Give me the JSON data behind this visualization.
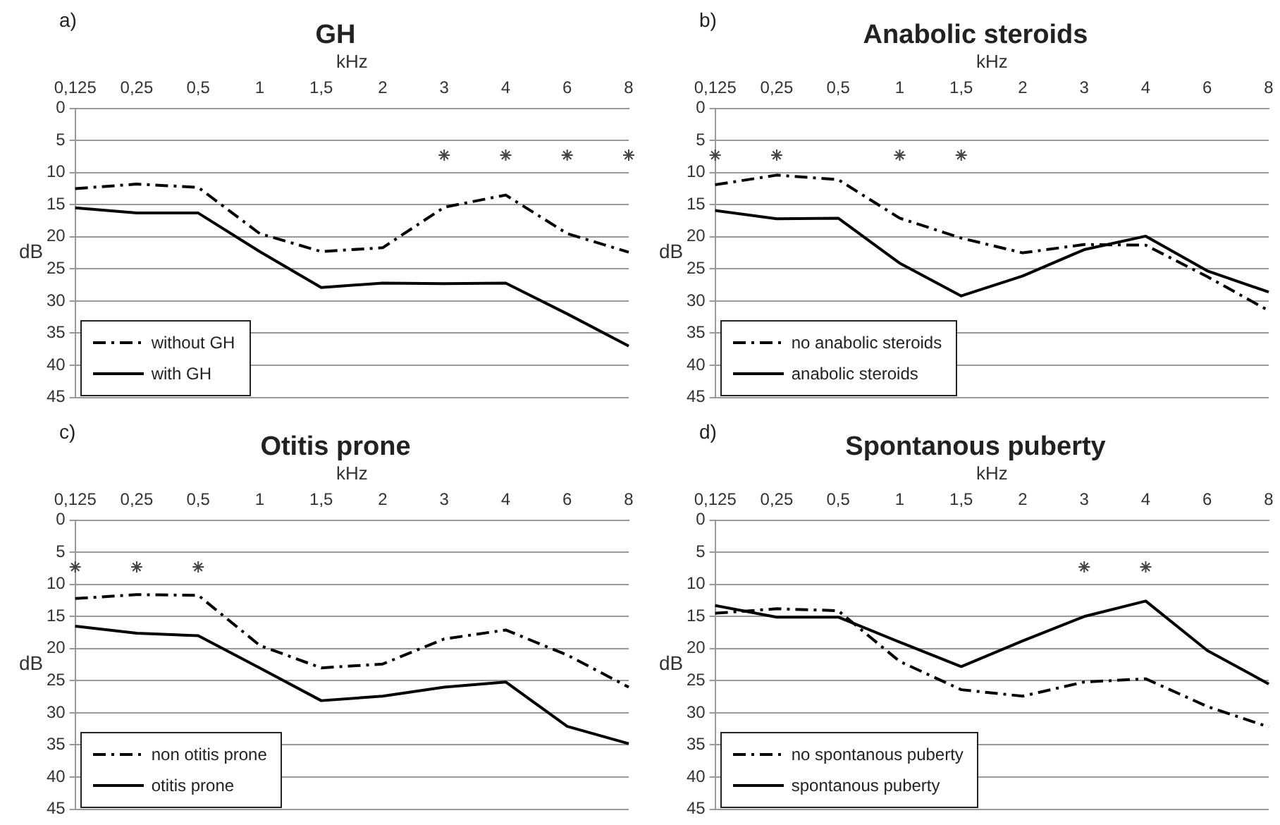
{
  "chart_data": [
    {
      "type": "line",
      "title": "GH",
      "xlabel": "kHz",
      "ylabel": "dB",
      "categories": [
        "0,125",
        "0,25",
        "0,5",
        "1",
        "1,5",
        "2",
        "3",
        "4",
        "6",
        "8"
      ],
      "ylim": [
        45,
        0
      ],
      "yticks": [
        0,
        5,
        10,
        15,
        20,
        25,
        30,
        35,
        40,
        45
      ],
      "grid": "y",
      "legend": "bottom left",
      "marker": "none",
      "tick_labels": "xy",
      "series": [
        {
          "name": "without GH",
          "color": "#000000",
          "line_style": "dashed",
          "values": [
            12.5,
            11.8,
            12.3,
            19.5,
            22.3,
            21.7,
            15.4,
            13.5,
            19.5,
            22.4
          ]
        },
        {
          "name": "with GH",
          "color": "#000000",
          "line_style": "solid",
          "values": [
            15.5,
            16.3,
            16.3,
            22.3,
            27.9,
            27.2,
            27.3,
            27.2,
            32,
            37
          ]
        },
        {
          "type": "scatter",
          "marker": "cross",
          "color": "#444444",
          "values": [
            null,
            null,
            null,
            null,
            null,
            null,
            7.3,
            7.3,
            7.3,
            7.3
          ]
        }
      ],
      "annotations": [
        "a)"
      ]
    },
    {
      "type": "line",
      "title": "Anabolic steroids",
      "xlabel": "kHz",
      "ylabel": "dB",
      "categories": [
        "0,125",
        "0,25",
        "0,5",
        "1",
        "1,5",
        "2",
        "3",
        "4",
        "6",
        "8"
      ],
      "ylim": [
        45,
        0
      ],
      "yticks": [
        0,
        5,
        10,
        15,
        20,
        25,
        30,
        35,
        40,
        45
      ],
      "grid": "y",
      "legend": "bottom left",
      "marker": "none",
      "series": [
        {
          "name": "no anabolic steroids",
          "color": "#000000",
          "line_style": "dashed",
          "values": [
            11.9,
            10.4,
            11.1,
            17.1,
            20.2,
            22.5,
            21.2,
            21.3,
            26.2,
            31.5
          ]
        },
        {
          "name": "anabolic steroids",
          "color": "#000000",
          "line_style": "solid",
          "values": [
            15.9,
            17.2,
            17.1,
            24.1,
            29.2,
            26.1,
            22,
            19.9,
            25.3,
            28.6
          ]
        },
        {
          "type": "scatter",
          "marker": "cross",
          "color": "#444444",
          "values": [
            7.3,
            7.3,
            null,
            7.3,
            7.3,
            null,
            null,
            null,
            null,
            null
          ]
        }
      ],
      "annotations": [
        "b)"
      ]
    },
    {
      "type": "line",
      "title": "Otitis prone",
      "xlabel": "kHz",
      "ylabel": "dB",
      "categories": [
        "0,125",
        "0,25",
        "0,5",
        "1",
        "1,5",
        "2",
        "3",
        "4",
        "6",
        "8"
      ],
      "ylim": [
        45,
        0
      ],
      "yticks": [
        0,
        5,
        10,
        15,
        20,
        25,
        30,
        35,
        40,
        45
      ],
      "grid": "y",
      "legend": "bottom left",
      "marker": "none",
      "series": [
        {
          "name": "non otitis prone",
          "color": "#000000",
          "line_style": "dashed",
          "values": [
            12.2,
            11.6,
            11.7,
            19.5,
            23,
            22.4,
            18.5,
            17.1,
            21,
            26
          ]
        },
        {
          "name": "otitis prone",
          "color": "#000000",
          "line_style": "solid",
          "values": [
            16.5,
            17.6,
            18,
            23,
            28.1,
            27.4,
            26,
            25.2,
            32.1,
            34.8
          ]
        },
        {
          "type": "scatter",
          "marker": "cross",
          "color": "#444444",
          "values": [
            7.3,
            7.3,
            7.3,
            null,
            null,
            null,
            null,
            null,
            null,
            null
          ]
        }
      ],
      "annotations": [
        "c)"
      ]
    },
    {
      "type": "line",
      "title": "Spontanous puberty",
      "xlabel": "kHz",
      "ylabel": "dB",
      "categories": [
        "0,125",
        "0,25",
        "0,5",
        "1",
        "1,5",
        "2",
        "3",
        "4",
        "6",
        "8"
      ],
      "ylim": [
        45,
        0
      ],
      "yticks": [
        0,
        5,
        10,
        15,
        20,
        25,
        30,
        35,
        40,
        45
      ],
      "grid": "y",
      "legend": "bottom left",
      "marker": "none",
      "series": [
        {
          "name": "no spontanous puberty",
          "color": "#000000",
          "line_style": "dashed",
          "values": [
            14.5,
            13.8,
            14.1,
            22,
            26.4,
            27.4,
            25.2,
            24.7,
            29,
            32.2
          ]
        },
        {
          "name": "spontanous puberty",
          "color": "#000000",
          "line_style": "solid",
          "values": [
            13.3,
            15.1,
            15.1,
            19,
            22.8,
            18.8,
            15,
            12.6,
            20.3,
            25.5
          ]
        },
        {
          "type": "scatter",
          "marker": "cross",
          "color": "#444444",
          "values": [
            null,
            null,
            null,
            null,
            null,
            null,
            7.3,
            7.3,
            null,
            null
          ]
        }
      ],
      "annotations": [
        "d)"
      ]
    }
  ]
}
